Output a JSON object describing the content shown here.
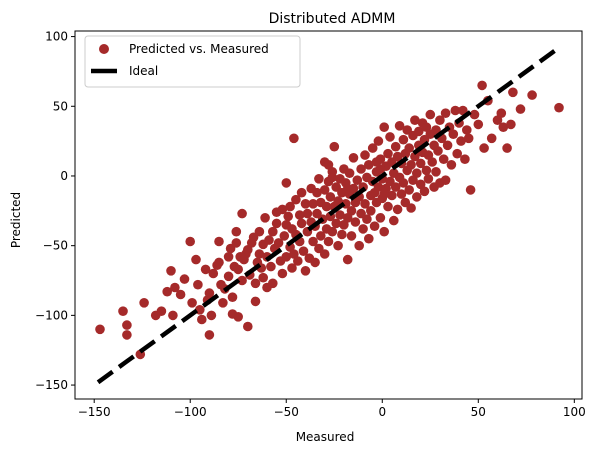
{
  "chart_data": {
    "type": "scatter",
    "title": "Distributed ADMM",
    "xlabel": "Measured",
    "ylabel": "Predicted",
    "xlim": [
      -160,
      104
    ],
    "ylim": [
      -160,
      104
    ],
    "xticks": [
      -150,
      -100,
      -50,
      0,
      50,
      100
    ],
    "yticks": [
      -150,
      -100,
      -50,
      0,
      50,
      100
    ],
    "xtick_labels": [
      "−150",
      "−100",
      "−50",
      "0",
      "50",
      "100"
    ],
    "ytick_labels": [
      "−150",
      "−100",
      "−50",
      "0",
      "50",
      "100"
    ],
    "grid": false,
    "legend": {
      "position": "top-left",
      "entries": [
        {
          "label": "Predicted vs. Measured",
          "marker": "circle",
          "color": "#a52a2a"
        },
        {
          "label": "Ideal",
          "marker": "dashed-line",
          "color": "#000000"
        }
      ]
    },
    "series": [
      {
        "name": "Predicted vs. Measured",
        "kind": "scatter",
        "color": "#a52a2a",
        "points": [
          [
            -147,
            -110
          ],
          [
            -135,
            -97
          ],
          [
            -133,
            -107
          ],
          [
            -133,
            -114
          ],
          [
            -126,
            -128
          ],
          [
            -124,
            -91
          ],
          [
            -118,
            -100
          ],
          [
            -115,
            -97
          ],
          [
            -112,
            -83
          ],
          [
            -110,
            -68
          ],
          [
            -109,
            -100
          ],
          [
            -108,
            -80
          ],
          [
            -105,
            -85
          ],
          [
            -103,
            -74
          ],
          [
            -100,
            -47
          ],
          [
            -99,
            -91
          ],
          [
            -97,
            -60
          ],
          [
            -96,
            -78
          ],
          [
            -95,
            -96
          ],
          [
            -94,
            -103
          ],
          [
            -92,
            -67
          ],
          [
            -91,
            -89
          ],
          [
            -90,
            -114
          ],
          [
            -90,
            -84
          ],
          [
            -89,
            -100
          ],
          [
            -88,
            -70
          ],
          [
            -86,
            -64
          ],
          [
            -85,
            -62
          ],
          [
            -85,
            -47
          ],
          [
            -84,
            -78
          ],
          [
            -83,
            -91
          ],
          [
            -82,
            -81
          ],
          [
            -80,
            -72
          ],
          [
            -80,
            -58
          ],
          [
            -79,
            -52
          ],
          [
            -78,
            -87
          ],
          [
            -78,
            -99
          ],
          [
            -77,
            -65
          ],
          [
            -76,
            -40
          ],
          [
            -76,
            -48
          ],
          [
            -75,
            -101
          ],
          [
            -75,
            -67
          ],
          [
            -74,
            -58
          ],
          [
            -73,
            -27
          ],
          [
            -73,
            -75
          ],
          [
            -72,
            -60
          ],
          [
            -71,
            -56
          ],
          [
            -70,
            -53
          ],
          [
            -70,
            -108
          ],
          [
            -69,
            -71
          ],
          [
            -68,
            -48
          ],
          [
            -67,
            -44
          ],
          [
            -66,
            -90
          ],
          [
            -66,
            -77
          ],
          [
            -65,
            -62
          ],
          [
            -64,
            -40
          ],
          [
            -64,
            -56
          ],
          [
            -63,
            -66
          ],
          [
            -62,
            -73
          ],
          [
            -62,
            -49
          ],
          [
            -61,
            -30
          ],
          [
            -60,
            -58
          ],
          [
            -60,
            -80
          ],
          [
            -59,
            -46
          ],
          [
            -58,
            -65
          ],
          [
            -57,
            -40
          ],
          [
            -57,
            -77
          ],
          [
            -56,
            -52
          ],
          [
            -55,
            -34
          ],
          [
            -55,
            -26
          ],
          [
            -54,
            -48
          ],
          [
            -53,
            -61
          ],
          [
            -52,
            -24
          ],
          [
            -52,
            -70
          ],
          [
            -51,
            -43
          ],
          [
            -50,
            -58
          ],
          [
            -50,
            -5
          ],
          [
            -50,
            -35
          ],
          [
            -49,
            -29
          ],
          [
            -48,
            -22
          ],
          [
            -48,
            -51
          ],
          [
            -47,
            -66
          ],
          [
            -47,
            -38
          ],
          [
            -46,
            -56
          ],
          [
            -46,
            27
          ],
          [
            -45,
            -17
          ],
          [
            -45,
            -42
          ],
          [
            -44,
            -61
          ],
          [
            -43,
            -28
          ],
          [
            -43,
            -47
          ],
          [
            -42,
            -12
          ],
          [
            -42,
            -34
          ],
          [
            -41,
            -54
          ],
          [
            -40,
            -20
          ],
          [
            -40,
            -68
          ],
          [
            -39,
            -40
          ],
          [
            -39,
            -27
          ],
          [
            -38,
            -59
          ],
          [
            -37,
            -9
          ],
          [
            -37,
            -33
          ],
          [
            -36,
            -47
          ],
          [
            -36,
            -20
          ],
          [
            -35,
            -62
          ],
          [
            -35,
            -36
          ],
          [
            -34,
            -12
          ],
          [
            -34,
            -27
          ],
          [
            -33,
            -52
          ],
          [
            -33,
            -2
          ],
          [
            -32,
            -43
          ],
          [
            -32,
            -19
          ],
          [
            -31,
            -31
          ],
          [
            -30,
            -56
          ],
          [
            -30,
            10
          ],
          [
            -30,
            -10
          ],
          [
            -29,
            -38
          ],
          [
            -29,
            -22
          ],
          [
            -28,
            -47
          ],
          [
            -28,
            8
          ],
          [
            -27,
            -15
          ],
          [
            -27,
            -29
          ],
          [
            -26,
            -40
          ],
          [
            -26,
            3
          ],
          [
            -25,
            21
          ],
          [
            -25,
            -22
          ],
          [
            -24,
            -8
          ],
          [
            -24,
            -34
          ],
          [
            -23,
            -50
          ],
          [
            -23,
            -18
          ],
          [
            -22,
            -2
          ],
          [
            -22,
            -28
          ],
          [
            -21,
            -12
          ],
          [
            -21,
            -42
          ],
          [
            -20,
            5
          ],
          [
            -20,
            -35
          ],
          [
            -19,
            -20
          ],
          [
            -19,
            -5
          ],
          [
            -18,
            -30
          ],
          [
            -18,
            -60
          ],
          [
            -17,
            -13
          ],
          [
            -17,
            2
          ],
          [
            -16,
            -25
          ],
          [
            -16,
            -43
          ],
          [
            -15,
            -9
          ],
          [
            -15,
            13
          ],
          [
            -14,
            -19
          ],
          [
            -14,
            -33
          ],
          [
            -13,
            -3
          ],
          [
            -12,
            -50
          ],
          [
            -12,
            -15
          ],
          [
            -11,
            -27
          ],
          [
            -11,
            5
          ],
          [
            -10,
            -38
          ],
          [
            -10,
            -8
          ],
          [
            -9,
            15
          ],
          [
            -9,
            -20
          ],
          [
            -8,
            -31
          ],
          [
            -8,
            -1
          ],
          [
            -7,
            -45
          ],
          [
            -7,
            8
          ],
          [
            -6,
            -14
          ],
          [
            -6,
            -25
          ],
          [
            -5,
            20
          ],
          [
            -5,
            -4
          ],
          [
            -4,
            -36
          ],
          [
            -4,
            -12
          ],
          [
            -3,
            3
          ],
          [
            -3,
            -19
          ],
          [
            -2,
            25
          ],
          [
            -2,
            -8
          ],
          [
            -1,
            -30
          ],
          [
            -1,
            12
          ],
          [
            0,
            -2
          ],
          [
            0,
            -16
          ],
          [
            1,
            35
          ],
          [
            1,
            -40
          ],
          [
            2,
            -9
          ],
          [
            2,
            7
          ],
          [
            3,
            16
          ],
          [
            3,
            -22
          ],
          [
            4,
            -4
          ],
          [
            4,
            28
          ],
          [
            5,
            -14
          ],
          [
            5,
            10
          ],
          [
            6,
            2
          ],
          [
            6,
            -32
          ],
          [
            7,
            21
          ],
          [
            7,
            -8
          ],
          [
            8,
            14
          ],
          [
            8,
            -24
          ],
          [
            9,
            -1
          ],
          [
            9,
            36
          ],
          [
            10,
            9
          ],
          [
            10,
            -13
          ],
          [
            11,
            26
          ],
          [
            11,
            -5
          ],
          [
            12,
            -19
          ],
          [
            12,
            16
          ],
          [
            13,
            4
          ],
          [
            13,
            33
          ],
          [
            14,
            -10
          ],
          [
            14,
            20
          ],
          [
            15,
            8
          ],
          [
            15,
            -23
          ],
          [
            16,
            29
          ],
          [
            16,
            -3
          ],
          [
            17,
            14
          ],
          [
            17,
            40
          ],
          [
            18,
            -15
          ],
          [
            18,
            2
          ],
          [
            19,
            22
          ],
          [
            19,
            32
          ],
          [
            20,
            9
          ],
          [
            20,
            -6
          ],
          [
            21,
            38
          ],
          [
            21,
            17
          ],
          [
            22,
            -11
          ],
          [
            22,
            26
          ],
          [
            23,
            4
          ],
          [
            23,
            35
          ],
          [
            24,
            15
          ],
          [
            24,
            -2
          ],
          [
            25,
            30
          ],
          [
            25,
            44
          ],
          [
            26,
            10
          ],
          [
            27,
            22
          ],
          [
            27,
            -8
          ],
          [
            28,
            33
          ],
          [
            28,
            3
          ],
          [
            29,
            18
          ],
          [
            30,
            40
          ],
          [
            30,
            -5
          ],
          [
            31,
            27
          ],
          [
            32,
            12
          ],
          [
            33,
            45
          ],
          [
            33,
            -3
          ],
          [
            34,
            22
          ],
          [
            35,
            35
          ],
          [
            36,
            8
          ],
          [
            37,
            30
          ],
          [
            38,
            47
          ],
          [
            39,
            16
          ],
          [
            40,
            38
          ],
          [
            41,
            25
          ],
          [
            42,
            47
          ],
          [
            43,
            12
          ],
          [
            44,
            33
          ],
          [
            45,
            27
          ],
          [
            46,
            -10
          ],
          [
            48,
            44
          ],
          [
            50,
            37
          ],
          [
            52,
            65
          ],
          [
            53,
            20
          ],
          [
            55,
            54
          ],
          [
            57,
            27
          ],
          [
            60,
            40
          ],
          [
            62,
            45
          ],
          [
            63,
            35
          ],
          [
            65,
            20
          ],
          [
            67,
            37
          ],
          [
            68,
            60
          ],
          [
            72,
            48
          ],
          [
            78,
            58
          ],
          [
            92,
            49
          ],
          [
            -1,
            5
          ],
          [
            1,
            -13
          ],
          [
            -3,
            10
          ],
          [
            -26,
            -1
          ],
          [
            -18,
            -9
          ],
          [
            -28,
            -4
          ]
        ]
      },
      {
        "name": "Ideal",
        "kind": "line",
        "style": "dashed",
        "color": "#000000",
        "x": [
          -148,
          92
        ],
        "y": [
          -148,
          92
        ]
      }
    ]
  }
}
